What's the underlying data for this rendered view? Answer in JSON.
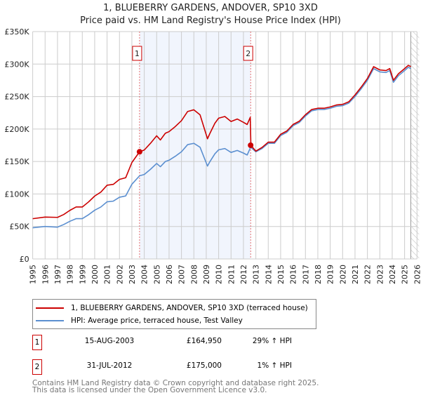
{
  "chart_data": {
    "type": "line",
    "title": "1, BLUEBERRY GARDENS, ANDOVER, SP10 3XD",
    "subtitle": "Price paid vs. HM Land Registry's House Price Index (HPI)",
    "xlim": [
      1995,
      2026
    ],
    "ylim": [
      0,
      350000
    ],
    "x_ticks": [
      "1995",
      "1996",
      "1997",
      "1998",
      "1999",
      "2000",
      "2001",
      "2002",
      "2003",
      "2004",
      "2005",
      "2006",
      "2007",
      "2008",
      "2009",
      "2010",
      "2011",
      "2012",
      "2013",
      "2014",
      "2015",
      "2016",
      "2017",
      "2018",
      "2019",
      "2020",
      "2021",
      "2022",
      "2023",
      "2024",
      "2025",
      "2026"
    ],
    "y_ticks": [
      {
        "v": 0,
        "label": "£0"
      },
      {
        "v": 50000,
        "label": "£50K"
      },
      {
        "v": 100000,
        "label": "£100K"
      },
      {
        "v": 150000,
        "label": "£150K"
      },
      {
        "v": 200000,
        "label": "£200K"
      },
      {
        "v": 250000,
        "label": "£250K"
      },
      {
        "v": 300000,
        "label": "£300K"
      },
      {
        "v": 350000,
        "label": "£350K"
      }
    ],
    "grid": true,
    "shaded_period": [
      2003.62,
      2012.58
    ],
    "hatched_from": 2025.5,
    "series": [
      {
        "name": "1, BLUEBERRY GARDENS, ANDOVER, SP10 3XD (terraced house)",
        "color": "#cc0000",
        "points": [
          [
            1995,
            62
          ],
          [
            1996,
            64.5
          ],
          [
            1997,
            64
          ],
          [
            1997.5,
            68.4
          ],
          [
            1998,
            74.8
          ],
          [
            1998.5,
            80
          ],
          [
            1999,
            80
          ],
          [
            1999.5,
            87.7
          ],
          [
            2000,
            96.8
          ],
          [
            2000.5,
            103
          ],
          [
            2001,
            113.5
          ],
          [
            2001.5,
            114.8
          ],
          [
            2002,
            122.5
          ],
          [
            2002.5,
            125
          ],
          [
            2003,
            148.4
          ],
          [
            2003.62,
            165
          ],
          [
            2004,
            167.7
          ],
          [
            2004.5,
            178
          ],
          [
            2005,
            189.6
          ],
          [
            2005.3,
            183.2
          ],
          [
            2005.7,
            193.5
          ],
          [
            2006,
            196
          ],
          [
            2006.5,
            203.8
          ],
          [
            2007,
            212.9
          ],
          [
            2007.5,
            227
          ],
          [
            2008,
            229.6
          ],
          [
            2008.5,
            221.9
          ],
          [
            2009.1,
            185
          ],
          [
            2009.3,
            193.5
          ],
          [
            2009.7,
            209
          ],
          [
            2010,
            216.7
          ],
          [
            2010.5,
            219.3
          ],
          [
            2011,
            211.6
          ],
          [
            2011.5,
            215.4
          ],
          [
            2012,
            210.3
          ],
          [
            2012.3,
            207
          ],
          [
            2012.55,
            218
          ],
          [
            2012.6,
            175
          ],
          [
            2013,
            166
          ],
          [
            2013.5,
            171.7
          ],
          [
            2014,
            179.8
          ],
          [
            2014.5,
            179.8
          ],
          [
            2015,
            191.9
          ],
          [
            2015.5,
            197
          ],
          [
            2016,
            207
          ],
          [
            2016.5,
            212
          ],
          [
            2017,
            222
          ],
          [
            2017.5,
            230
          ],
          [
            2018,
            232
          ],
          [
            2018.5,
            232
          ],
          [
            2019,
            234
          ],
          [
            2019.5,
            237
          ],
          [
            2020,
            238
          ],
          [
            2020.5,
            242
          ],
          [
            2021,
            252.5
          ],
          [
            2021.5,
            264.6
          ],
          [
            2022,
            277.8
          ],
          [
            2022.5,
            296
          ],
          [
            2023,
            291
          ],
          [
            2023.5,
            290
          ],
          [
            2023.8,
            293
          ],
          [
            2024.1,
            275
          ],
          [
            2024.5,
            285
          ],
          [
            2025,
            293
          ],
          [
            2025.3,
            298
          ],
          [
            2025.5,
            296
          ]
        ]
      },
      {
        "name": "HPI: Average price, terraced house, Test Valley",
        "color": "#5b8fd0",
        "points": [
          [
            1995,
            48
          ],
          [
            1996,
            50
          ],
          [
            1997,
            49
          ],
          [
            1997.5,
            53
          ],
          [
            1998,
            58
          ],
          [
            1998.5,
            62
          ],
          [
            1999,
            62
          ],
          [
            1999.5,
            68
          ],
          [
            2000,
            75
          ],
          [
            2000.5,
            80
          ],
          [
            2001,
            88
          ],
          [
            2001.5,
            89
          ],
          [
            2002,
            95
          ],
          [
            2002.5,
            97
          ],
          [
            2003,
            115
          ],
          [
            2003.62,
            128
          ],
          [
            2004,
            130
          ],
          [
            2004.5,
            138
          ],
          [
            2005,
            147
          ],
          [
            2005.3,
            142
          ],
          [
            2005.7,
            150
          ],
          [
            2006,
            152
          ],
          [
            2006.5,
            158
          ],
          [
            2007,
            165
          ],
          [
            2007.5,
            176
          ],
          [
            2008,
            178
          ],
          [
            2008.5,
            172
          ],
          [
            2009.1,
            143
          ],
          [
            2009.3,
            150
          ],
          [
            2009.7,
            162
          ],
          [
            2010,
            168
          ],
          [
            2010.5,
            170
          ],
          [
            2011,
            164
          ],
          [
            2011.5,
            167
          ],
          [
            2012,
            163
          ],
          [
            2012.3,
            160
          ],
          [
            2012.58,
            172
          ],
          [
            2013,
            165
          ],
          [
            2013.5,
            170
          ],
          [
            2014,
            178
          ],
          [
            2014.5,
            178
          ],
          [
            2015,
            190
          ],
          [
            2015.5,
            195
          ],
          [
            2016,
            205
          ],
          [
            2016.5,
            210
          ],
          [
            2017,
            220
          ],
          [
            2017.5,
            228
          ],
          [
            2018,
            230
          ],
          [
            2018.5,
            230
          ],
          [
            2019,
            232
          ],
          [
            2019.5,
            235
          ],
          [
            2020,
            236
          ],
          [
            2020.5,
            240
          ],
          [
            2021,
            250
          ],
          [
            2021.5,
            262
          ],
          [
            2022,
            275
          ],
          [
            2022.5,
            293
          ],
          [
            2023,
            288
          ],
          [
            2023.5,
            287
          ],
          [
            2023.8,
            290
          ],
          [
            2024.1,
            272
          ],
          [
            2024.5,
            282
          ],
          [
            2025,
            290
          ],
          [
            2025.3,
            295
          ],
          [
            2025.5,
            293
          ]
        ]
      }
    ],
    "sales": [
      {
        "label": "1",
        "x": 2003.62,
        "price": 164950
      },
      {
        "label": "2",
        "x": 2012.58,
        "price": 175000
      }
    ]
  },
  "legend": {
    "red": "1, BLUEBERRY GARDENS, ANDOVER, SP10 3XD (terraced house)",
    "blue": "HPI: Average price, terraced house, Test Valley"
  },
  "transactions": [
    {
      "num": "1",
      "date": "15-AUG-2003",
      "price": "£164,950",
      "hpi": "29% ↑ HPI"
    },
    {
      "num": "2",
      "date": "31-JUL-2012",
      "price": "£175,000",
      "hpi": "1% ↑ HPI"
    }
  ],
  "footer": [
    "Contains HM Land Registry data © Crown copyright and database right 2025.",
    "This data is licensed under the Open Government Licence v3.0."
  ]
}
